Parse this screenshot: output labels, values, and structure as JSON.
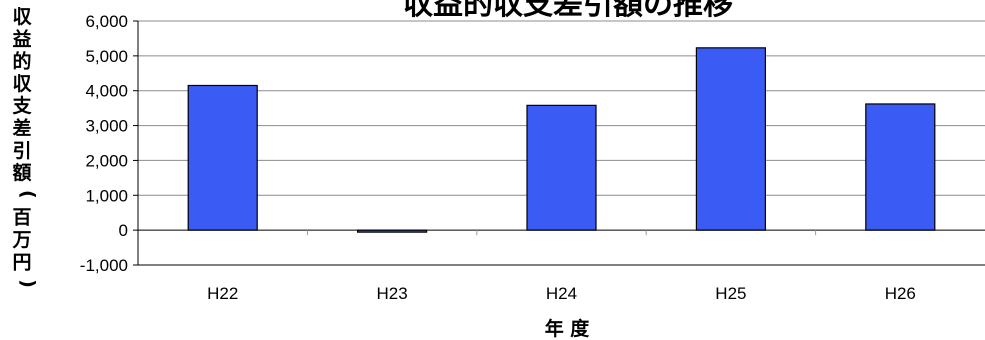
{
  "chart_data": {
    "type": "bar",
    "title": "収益的収支差引額の推移",
    "xlabel": "年 度",
    "ylabel": "収益的収支差引額（百万円）",
    "categories": [
      "H22",
      "H23",
      "H24",
      "H25",
      "H26"
    ],
    "values": [
      4150,
      -50,
      3580,
      5230,
      3620
    ],
    "ylim": [
      -1000,
      6000
    ],
    "yticks": [
      -1000,
      0,
      1000,
      2000,
      3000,
      4000,
      5000,
      6000
    ],
    "ytick_labels": [
      "-1,000",
      "0",
      "1,000",
      "2,000",
      "3,000",
      "4,000",
      "5,000",
      "6,000"
    ],
    "grid": true,
    "bar_color": "#3a5cf5"
  }
}
